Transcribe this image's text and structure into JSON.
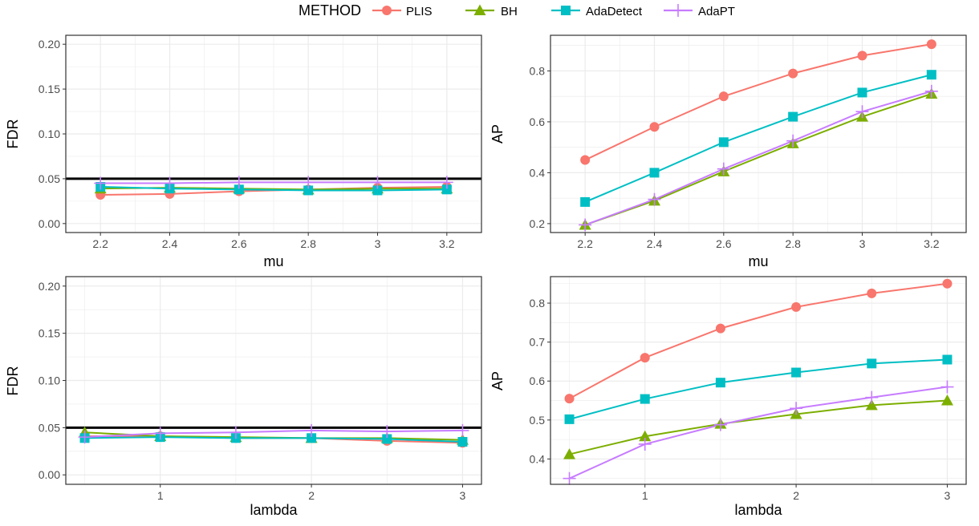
{
  "legend": {
    "title": "METHOD",
    "placement": "top",
    "entries": [
      {
        "name": "PLIS",
        "color": "#F8766D",
        "shape": "circle"
      },
      {
        "name": "BH",
        "color": "#7CAE00",
        "shape": "triangle"
      },
      {
        "name": "AdaDetect",
        "color": "#00BFC4",
        "shape": "square"
      },
      {
        "name": "AdaPT",
        "color": "#C77CFF",
        "shape": "plus"
      }
    ]
  },
  "colors": {
    "panel_bg": "#ffffff",
    "grid": "#ebebeb",
    "border": "#333333",
    "reference_line": "#000000"
  },
  "chart_data": [
    {
      "type": "line",
      "xlabel": "mu",
      "ylabel": "FDR",
      "x": [
        2.2,
        2.4,
        2.6,
        2.8,
        3.0,
        3.2
      ],
      "xticks": [
        "2.2",
        "2.4",
        "2.6",
        "2.8",
        "3",
        "3.2"
      ],
      "xlim": [
        2.1,
        3.3
      ],
      "ylim": [
        -0.01,
        0.21
      ],
      "yticks": [
        "0.00",
        "0.05",
        "0.10",
        "0.15",
        "0.20"
      ],
      "grid": true,
      "hline": 0.05,
      "series": [
        {
          "name": "PLIS",
          "values": [
            0.032,
            0.033,
            0.036,
            0.038,
            0.04,
            0.041
          ]
        },
        {
          "name": "BH",
          "values": [
            0.039,
            0.04,
            0.039,
            0.038,
            0.039,
            0.039
          ]
        },
        {
          "name": "AdaDetect",
          "values": [
            0.041,
            0.039,
            0.038,
            0.037,
            0.037,
            0.038
          ]
        },
        {
          "name": "AdaPT",
          "values": [
            0.045,
            0.045,
            0.046,
            0.046,
            0.046,
            0.046
          ]
        }
      ]
    },
    {
      "type": "line",
      "xlabel": "mu",
      "ylabel": "AP",
      "x": [
        2.2,
        2.4,
        2.6,
        2.8,
        3.0,
        3.2
      ],
      "xticks": [
        "2.2",
        "2.4",
        "2.6",
        "2.8",
        "3",
        "3.2"
      ],
      "xlim": [
        2.1,
        3.3
      ],
      "ylim": [
        0.165,
        0.94
      ],
      "yticks": [
        "0.2",
        "0.4",
        "0.6",
        "0.8"
      ],
      "grid": true,
      "series": [
        {
          "name": "PLIS",
          "values": [
            0.45,
            0.58,
            0.7,
            0.79,
            0.86,
            0.905
          ]
        },
        {
          "name": "BH",
          "values": [
            0.195,
            0.29,
            0.405,
            0.515,
            0.62,
            0.71
          ]
        },
        {
          "name": "AdaDetect",
          "values": [
            0.285,
            0.4,
            0.52,
            0.62,
            0.715,
            0.785
          ]
        },
        {
          "name": "AdaPT",
          "values": [
            0.195,
            0.295,
            0.415,
            0.525,
            0.64,
            0.72
          ]
        }
      ]
    },
    {
      "type": "line",
      "xlabel": "lambda",
      "ylabel": "FDR",
      "x": [
        0.5,
        1.0,
        1.5,
        2.0,
        2.5,
        3.0
      ],
      "xticks": [
        "1",
        "2",
        "3"
      ],
      "xtick_values": [
        1,
        2,
        3
      ],
      "xlim": [
        0.375,
        3.125
      ],
      "ylim": [
        -0.01,
        0.21
      ],
      "yticks": [
        "0.00",
        "0.05",
        "0.10",
        "0.15",
        "0.20"
      ],
      "grid": true,
      "hline": 0.05,
      "series": [
        {
          "name": "PLIS",
          "values": [
            0.041,
            0.041,
            0.039,
            0.039,
            0.036,
            0.034
          ]
        },
        {
          "name": "BH",
          "values": [
            0.045,
            0.041,
            0.04,
            0.039,
            0.039,
            0.037
          ]
        },
        {
          "name": "AdaDetect",
          "values": [
            0.039,
            0.04,
            0.039,
            0.039,
            0.038,
            0.035
          ]
        },
        {
          "name": "AdaPT",
          "values": [
            0.04,
            0.044,
            0.045,
            0.047,
            0.046,
            0.047
          ]
        }
      ]
    },
    {
      "type": "line",
      "xlabel": "lambda",
      "ylabel": "AP",
      "x": [
        0.5,
        1.0,
        1.5,
        2.0,
        2.5,
        3.0
      ],
      "xticks": [
        "1",
        "2",
        "3"
      ],
      "xtick_values": [
        1,
        2,
        3
      ],
      "xlim": [
        0.375,
        3.125
      ],
      "ylim": [
        0.335,
        0.868
      ],
      "yticks": [
        "0.4",
        "0.5",
        "0.6",
        "0.7",
        "0.8"
      ],
      "grid": true,
      "series": [
        {
          "name": "PLIS",
          "values": [
            0.555,
            0.66,
            0.735,
            0.79,
            0.825,
            0.85
          ]
        },
        {
          "name": "BH",
          "values": [
            0.412,
            0.458,
            0.49,
            0.515,
            0.538,
            0.55
          ]
        },
        {
          "name": "AdaDetect",
          "values": [
            0.502,
            0.554,
            0.596,
            0.622,
            0.645,
            0.655
          ]
        },
        {
          "name": "AdaPT",
          "values": [
            0.35,
            0.438,
            0.488,
            0.53,
            0.558,
            0.585
          ]
        }
      ]
    }
  ]
}
